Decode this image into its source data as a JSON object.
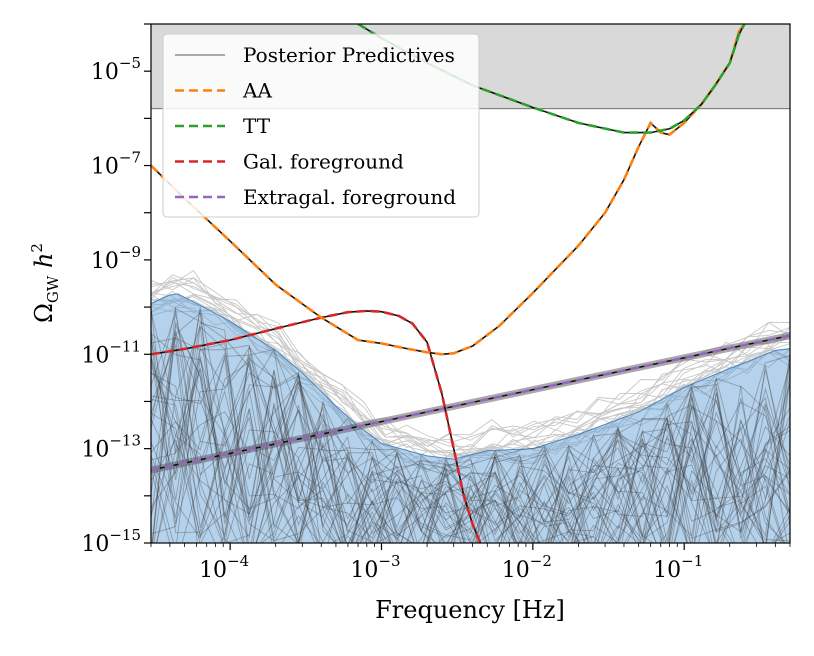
{
  "chart_data": {
    "type": "line",
    "xscale": "log",
    "yscale": "log",
    "xlim": [
      3e-05,
      0.5
    ],
    "ylim": [
      1e-15,
      0.0001
    ],
    "xlabel": "Frequency [Hz]",
    "ylabel": {
      "main": "Ω",
      "sub": "GW",
      "tail": " h",
      "sup": "2"
    },
    "x_ticks": [
      {
        "base": "10",
        "exp": "−4",
        "value": 0.0001
      },
      {
        "base": "10",
        "exp": "−3",
        "value": 0.001
      },
      {
        "base": "10",
        "exp": "−2",
        "value": 0.01
      },
      {
        "base": "10",
        "exp": "−1",
        "value": 0.1
      }
    ],
    "y_ticks": [
      {
        "base": "10",
        "exp": "−5",
        "value": 1e-05
      },
      {
        "base": "10",
        "exp": "−7",
        "value": 1e-07
      },
      {
        "base": "10",
        "exp": "−9",
        "value": 1e-09
      },
      {
        "base": "10",
        "exp": "−11",
        "value": 1e-11
      },
      {
        "base": "10",
        "exp": "−13",
        "value": 1e-13
      },
      {
        "base": "10",
        "exp": "−15",
        "value": 1e-15
      }
    ],
    "excluded_region": {
      "y_from": 1.6e-06,
      "y_to": 0.0001,
      "color": "#d9d9d9"
    },
    "legend": {
      "position": "top-left",
      "entries": [
        {
          "label": "Posterior Predictives",
          "color": "#555555",
          "style": "solid"
        },
        {
          "label": "AA",
          "color": "#ff7f0e",
          "style": "dashed"
        },
        {
          "label": "TT",
          "color": "#2ca02c",
          "style": "dashed"
        },
        {
          "label": "Gal. foreground",
          "color": "#d62728",
          "style": "dashed"
        },
        {
          "label": "Extragal. foreground",
          "color": "#9467bd",
          "style": "dashed"
        }
      ]
    },
    "posterior_band": {
      "color": "#5b9bd5",
      "x": [
        3e-05,
        4e-05,
        4.5e-05,
        6e-05,
        0.0001,
        0.0002,
        0.0003,
        0.0005,
        0.0007,
        0.001,
        0.0015,
        0.002,
        0.003,
        0.005,
        0.01,
        0.02,
        0.05,
        0.1,
        0.2,
        0.4,
        0.5
      ],
      "upper": [
        1.2e-10,
        1.8e-10,
        1.9e-10,
        1.2e-10,
        5e-11,
        1.2e-11,
        4e-12,
        8e-13,
        3e-13,
        1.3e-13,
        9e-14,
        7e-14,
        6e-14,
        9e-14,
        1e-13,
        2e-13,
        6e-13,
        2e-12,
        5e-12,
        1.2e-11,
        1.3e-11
      ]
    },
    "series": [
      {
        "name": "Extragal. foreground",
        "color": "#9467bd",
        "style": "dashed",
        "x": [
          3e-05,
          0.5
        ],
        "y": [
          3.5e-14,
          2.5e-11
        ]
      },
      {
        "name": "Gal. foreground",
        "color": "#d62728",
        "style": "dashed",
        "x": [
          3e-05,
          5e-05,
          0.0001,
          0.0002,
          0.0004,
          0.0006,
          0.0008,
          0.001,
          0.0013,
          0.0016,
          0.002,
          0.0025,
          0.003,
          0.0035,
          0.004,
          0.0045
        ],
        "y": [
          1e-11,
          1.3e-11,
          2e-11,
          3.5e-11,
          6e-11,
          7.8e-11,
          8.3e-11,
          8e-11,
          6.5e-11,
          4.5e-11,
          1.8e-11,
          1.5e-12,
          1e-13,
          1e-14,
          2.5e-15,
          1e-15
        ]
      },
      {
        "name": "AA",
        "color": "#ff7f0e",
        "style": "dashed",
        "x": [
          3e-05,
          5e-05,
          0.0001,
          0.0002,
          0.0004,
          0.0007,
          0.001,
          0.0015,
          0.002,
          0.0025,
          0.003,
          0.004,
          0.006,
          0.01,
          0.02,
          0.03,
          0.04,
          0.05,
          0.06,
          0.07,
          0.08,
          0.1,
          0.13,
          0.16,
          0.2,
          0.23,
          0.25
        ],
        "y": [
          1e-07,
          2e-08,
          2.5e-09,
          3e-10,
          6e-11,
          2e-11,
          1.7e-11,
          1.3e-11,
          1.1e-11,
          1e-11,
          1.05e-11,
          1.5e-11,
          4e-11,
          2e-10,
          2e-09,
          1e-08,
          5e-08,
          2.5e-07,
          8e-07,
          5e-07,
          4.5e-07,
          8e-07,
          2e-06,
          5e-06,
          1.5e-05,
          7e-05,
          0.0001
        ]
      },
      {
        "name": "TT",
        "color": "#2ca02c",
        "style": "dashed",
        "x": [
          0.0007,
          0.001,
          0.002,
          0.004,
          0.01,
          0.02,
          0.04,
          0.06,
          0.08,
          0.1,
          0.13,
          0.16,
          0.2,
          0.23,
          0.25
        ],
        "y": [
          0.0001,
          5e-05,
          1.5e-05,
          5e-06,
          1.7e-06,
          8e-07,
          5e-07,
          5e-07,
          6e-07,
          9e-07,
          2e-06,
          5e-06,
          1.5e-05,
          6e-05,
          0.0001
        ]
      }
    ]
  }
}
